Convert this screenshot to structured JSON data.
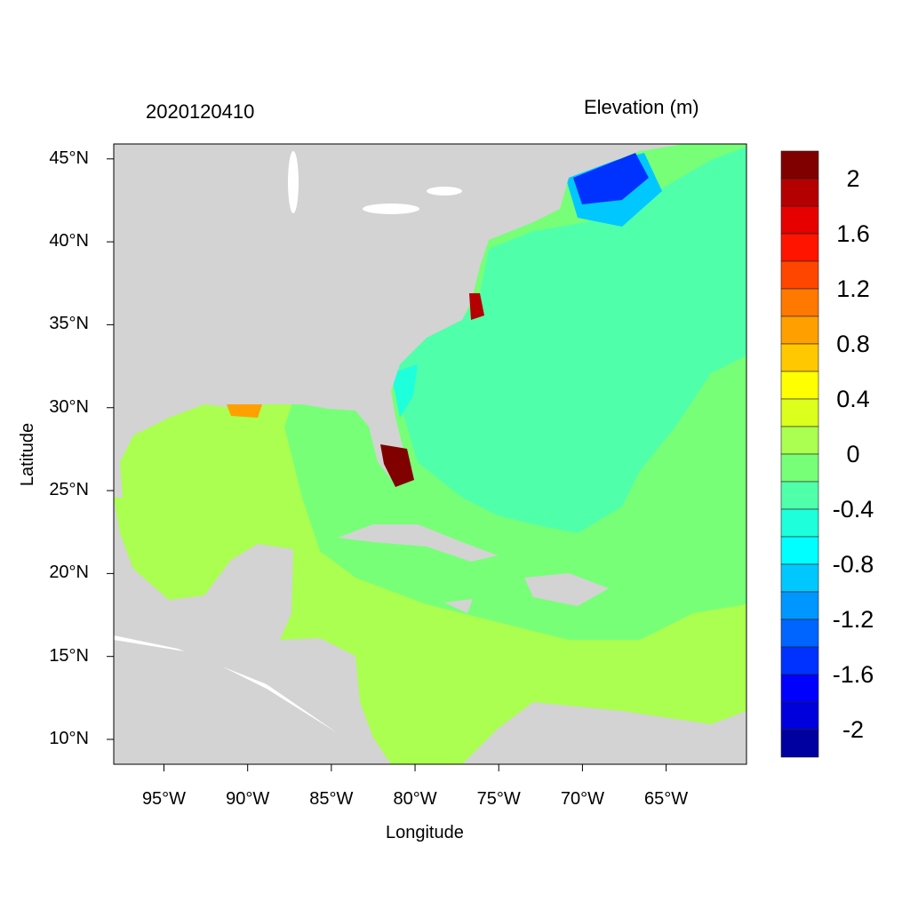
{
  "chart_data": {
    "type": "map",
    "title_left": "2020120410",
    "title_right": "Elevation (m)",
    "xlabel": "Longitude",
    "ylabel": "Latitude",
    "xlim": [
      -98,
      -60.2
    ],
    "ylim": [
      8.5,
      45.9
    ],
    "x_ticks": [
      {
        "value": -95,
        "label": "95°W"
      },
      {
        "value": -90,
        "label": "90°W"
      },
      {
        "value": -85,
        "label": "85°W"
      },
      {
        "value": -80,
        "label": "80°W"
      },
      {
        "value": -75,
        "label": "75°W"
      },
      {
        "value": -70,
        "label": "70°W"
      },
      {
        "value": -65,
        "label": "65°W"
      }
    ],
    "y_ticks": [
      {
        "value": 45,
        "label": "45°N"
      },
      {
        "value": 40,
        "label": "40°N"
      },
      {
        "value": 35,
        "label": "35°N"
      },
      {
        "value": 30,
        "label": "30°N"
      },
      {
        "value": 25,
        "label": "25°N"
      },
      {
        "value": 20,
        "label": "20°N"
      },
      {
        "value": 15,
        "label": "15°N"
      },
      {
        "value": 10,
        "label": "10°N"
      }
    ],
    "colorbar": {
      "colors": [
        "#800000",
        "#B40000",
        "#E60000",
        "#FF1400",
        "#FF4600",
        "#FF7800",
        "#FFA000",
        "#FFC800",
        "#FFFF00",
        "#DCFF1E",
        "#AAFF50",
        "#78FF78",
        "#50FFAA",
        "#1EFFDC",
        "#00FFFF",
        "#00C8FF",
        "#0096FF",
        "#0064FF",
        "#0032FF",
        "#0000FF",
        "#0000DC",
        "#0000A0"
      ],
      "labels": [
        "2",
        "1.6",
        "1.2",
        "0.8",
        "0.4",
        "0",
        "-0.4",
        "-0.8",
        "-1.2",
        "-1.6",
        "-2"
      ]
    },
    "land_color": "#D3D3D3"
  }
}
